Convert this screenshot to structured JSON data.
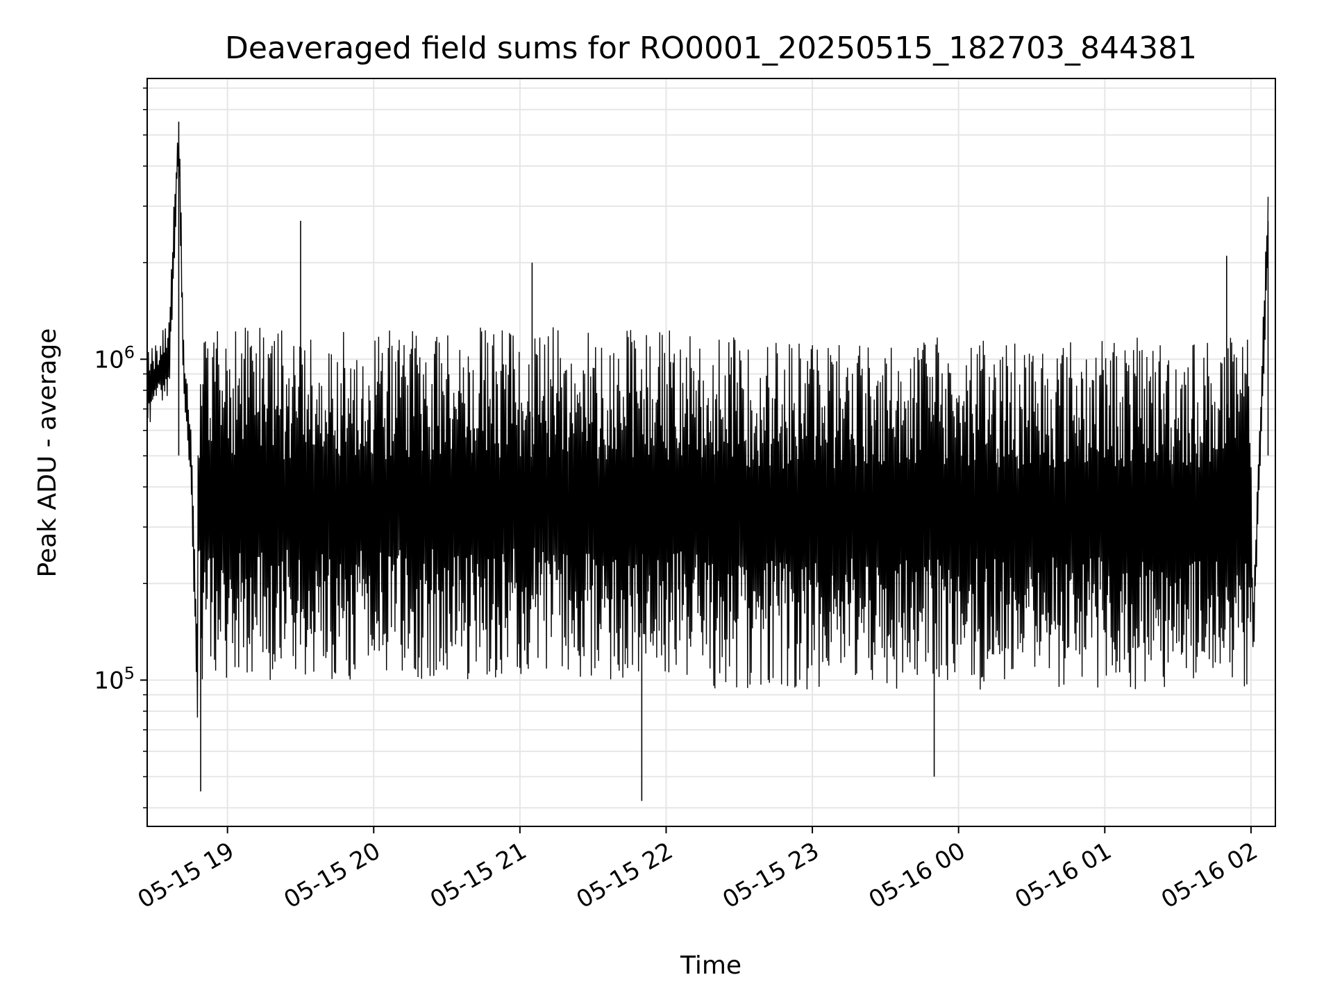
{
  "chart_data": {
    "type": "line",
    "title": "Deaveraged field sums for RO0001_20250515_182703_844381",
    "xlabel": "Time",
    "ylabel": "Peak ADU - average",
    "x_range": [
      "2025-05-15 18:27:03",
      "2025-05-16 02:10:00"
    ],
    "y_scale": "log",
    "ylim": [
      35000,
      7500000
    ],
    "x_tick_labels": [
      "05-15 19",
      "05-15 20",
      "05-15 21",
      "05-15 22",
      "05-15 23",
      "05-16 00",
      "05-16 01",
      "05-16 02"
    ],
    "x_tick_values": [
      "2025-05-15 19:00",
      "2025-05-15 20:00",
      "2025-05-15 21:00",
      "2025-05-15 22:00",
      "2025-05-15 23:00",
      "2025-05-16 00:00",
      "2025-05-16 01:00",
      "2025-05-16 02:00"
    ],
    "y_tick_labels": [
      {
        "base": "10",
        "exp": "5",
        "value": 100000
      },
      {
        "base": "10",
        "exp": "6",
        "value": 1000000
      }
    ],
    "grid": true,
    "line_color": "#000000",
    "series": [
      {
        "x": [
          "2025-05-15 18:27",
          "2025-05-15 18:36",
          "2025-05-15 18:40",
          "2025-05-15 18:42",
          "2025-05-15 18:45",
          "2025-05-15 18:49",
          "2025-05-15 18:53",
          "2025-05-15 19:10",
          "2025-05-15 19:30",
          "2025-05-15 20:00",
          "2025-05-15 20:15",
          "2025-05-15 20:30",
          "2025-05-15 21:05",
          "2025-05-15 21:30",
          "2025-05-15 21:50",
          "2025-05-15 22:30",
          "2025-05-15 23:00",
          "2025-05-15 23:30",
          "2025-05-15 23:50",
          "2025-05-16 00:00",
          "2025-05-16 00:30",
          "2025-05-16 01:00",
          "2025-05-16 01:30",
          "2025-05-16 01:50",
          "2025-05-16 01:59",
          "2025-05-16 02:01",
          "2025-05-16 02:07"
        ],
        "y": [
          800000,
          1000000,
          5500000,
          900000,
          500000,
          45000,
          350000,
          400000,
          2700000,
          400000,
          300000,
          500000,
          2000000,
          300000,
          42000,
          300000,
          250000,
          250000,
          50000,
          300000,
          350000,
          250000,
          200000,
          2100000,
          400000,
          150000,
          2700000
        ]
      }
    ],
    "legend": null
  }
}
